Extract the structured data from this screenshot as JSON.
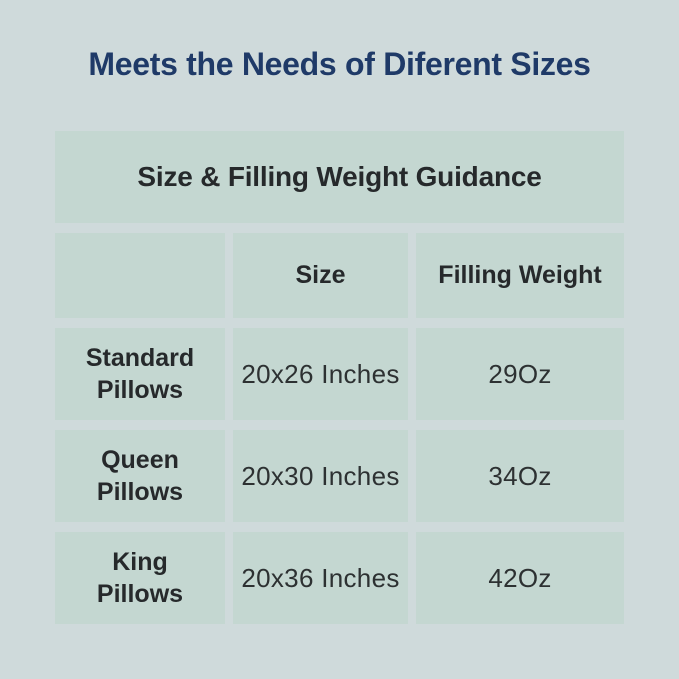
{
  "page": {
    "title": "Meets the Needs of Diferent Sizes"
  },
  "table": {
    "title": "Size & Filling Weight Guidance",
    "columns": [
      "",
      "Size",
      "Filling Weight"
    ],
    "rows": [
      {
        "name": "Standard\nPillows",
        "size": "20x26 Inches",
        "weight": "29Oz"
      },
      {
        "name": "Queen\nPillows",
        "size": "20x30 Inches",
        "weight": "34Oz"
      },
      {
        "name": "King\nPillows",
        "size": "20x36 Inches",
        "weight": "42Oz"
      }
    ]
  },
  "chart_data": {
    "type": "table",
    "title": "Size & Filling Weight Guidance",
    "columns": [
      "",
      "Size",
      "Filling Weight"
    ],
    "rows": [
      [
        "Standard Pillows",
        "20x26 Inches",
        "29Oz"
      ],
      [
        "Queen Pillows",
        "20x30 Inches",
        "34Oz"
      ],
      [
        "King Pillows",
        "20x36 Inches",
        "42Oz"
      ]
    ]
  },
  "colors": {
    "background": "#cfdadb",
    "cell": "#c4d7d1",
    "title": "#1f3a68",
    "text": "#26292b",
    "value": "#2d3132"
  }
}
